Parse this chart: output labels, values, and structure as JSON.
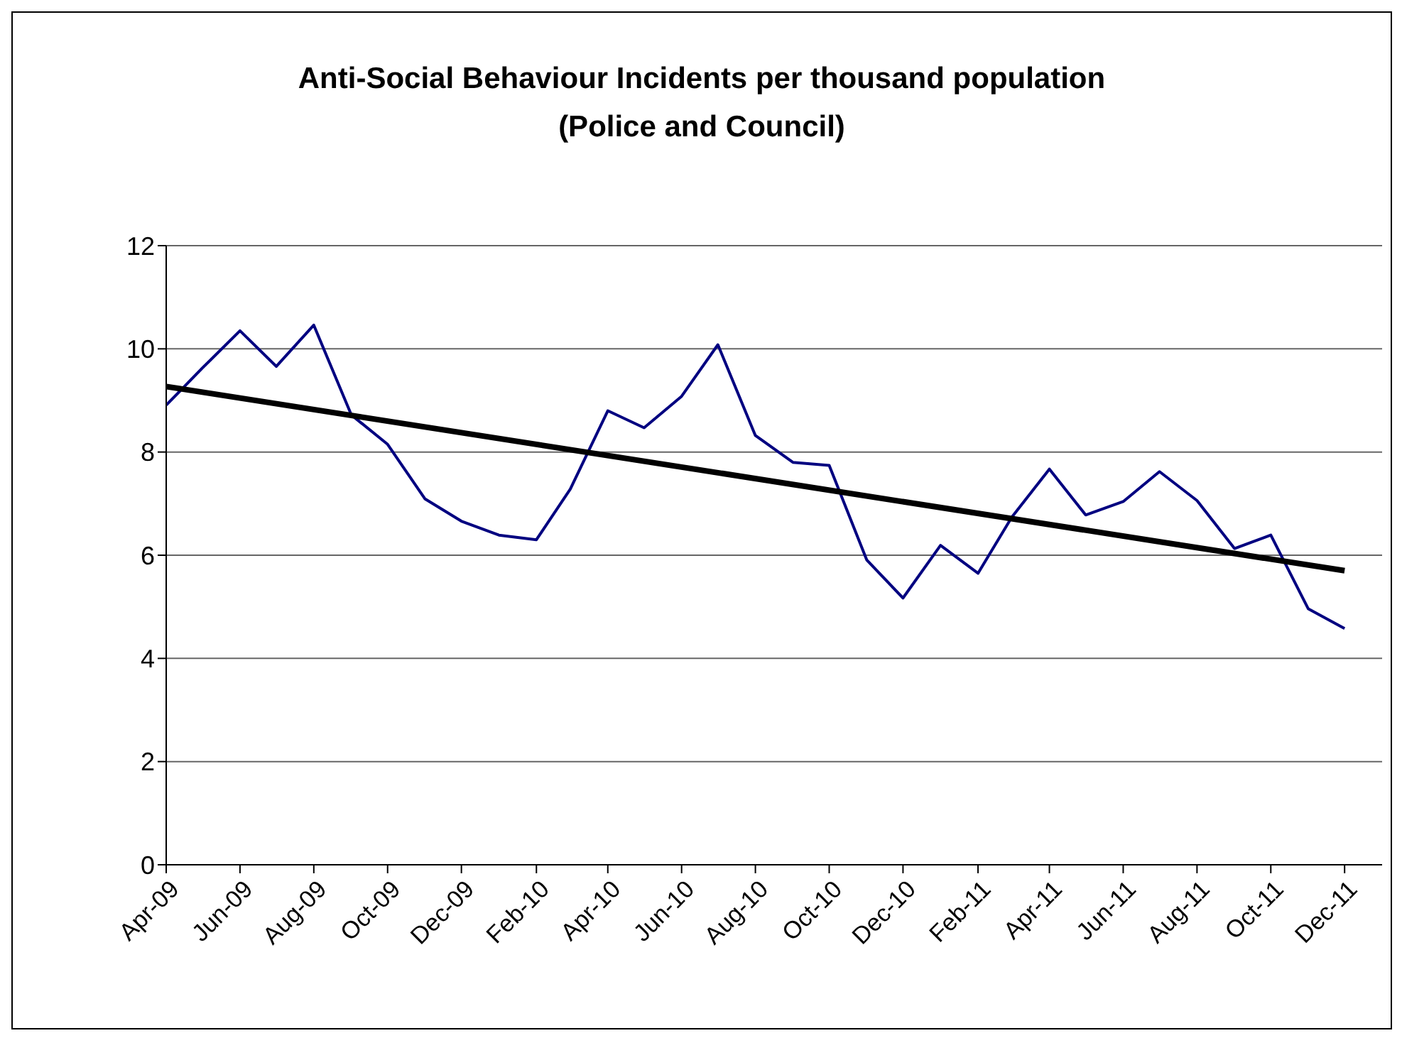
{
  "chart_data": {
    "type": "line",
    "title": "Anti-Social Behaviour Incidents per thousand population (Police and Council)",
    "x": [
      "2009-04",
      "2009-05",
      "2009-06",
      "2009-07",
      "2009-08",
      "2009-09",
      "2009-10",
      "2009-11",
      "2009-12",
      "2010-01",
      "2010-02",
      "2010-03",
      "2010-04",
      "2010-05",
      "2010-06",
      "2010-07",
      "2010-08",
      "2010-09",
      "2010-10",
      "2010-11",
      "2010-12",
      "2011-01",
      "2011-02",
      "2011-03",
      "2011-04",
      "2011-05",
      "2011-06",
      "2011-07",
      "2011-08",
      "2011-09",
      "2011-10",
      "2011-11",
      "2011-12"
    ],
    "series": [
      {
        "color": "#000080",
        "values": [
          8.91,
          9.63,
          10.35,
          9.66,
          10.46,
          8.72,
          8.15,
          7.09,
          6.66,
          6.39,
          6.3,
          7.28,
          8.8,
          8.47,
          9.08,
          10.08,
          8.32,
          7.8,
          7.74,
          5.91,
          5.17,
          6.19,
          5.65,
          6.74,
          7.67,
          6.78,
          7.04,
          7.62,
          7.06,
          6.13,
          6.39,
          4.96,
          4.58
        ]
      },
      {
        "type": "line",
        "color": "#000000",
        "x": [
          "2009-04",
          "2011-12"
        ],
        "values": [
          9.27,
          5.7
        ]
      }
    ],
    "xlim": [
      "2009-04",
      "2012-01"
    ],
    "xticks": [
      {
        "value": "2009-04",
        "label": "Apr-09"
      },
      {
        "value": "2009-06",
        "label": "Jun-09"
      },
      {
        "value": "2009-08",
        "label": "Aug-09"
      },
      {
        "value": "2009-10",
        "label": "Oct-09"
      },
      {
        "value": "2009-12",
        "label": "Dec-09"
      },
      {
        "value": "2010-02",
        "label": "Feb-10"
      },
      {
        "value": "2010-04",
        "label": "Apr-10"
      },
      {
        "value": "2010-06",
        "label": "Jun-10"
      },
      {
        "value": "2010-08",
        "label": "Aug-10"
      },
      {
        "value": "2010-10",
        "label": "Oct-10"
      },
      {
        "value": "2010-12",
        "label": "Dec-10"
      },
      {
        "value": "2011-02",
        "label": "Feb-11"
      },
      {
        "value": "2011-04",
        "label": "Apr-11"
      },
      {
        "value": "2011-06",
        "label": "Jun-11"
      },
      {
        "value": "2011-08",
        "label": "Aug-11"
      },
      {
        "value": "2011-10",
        "label": "Oct-11"
      },
      {
        "value": "2011-12",
        "label": "Dec-11"
      }
    ],
    "ylim": [
      0,
      12
    ],
    "yticks": [
      0,
      2,
      4,
      6,
      8,
      10,
      12
    ],
    "grid": "y",
    "marker": "none"
  }
}
